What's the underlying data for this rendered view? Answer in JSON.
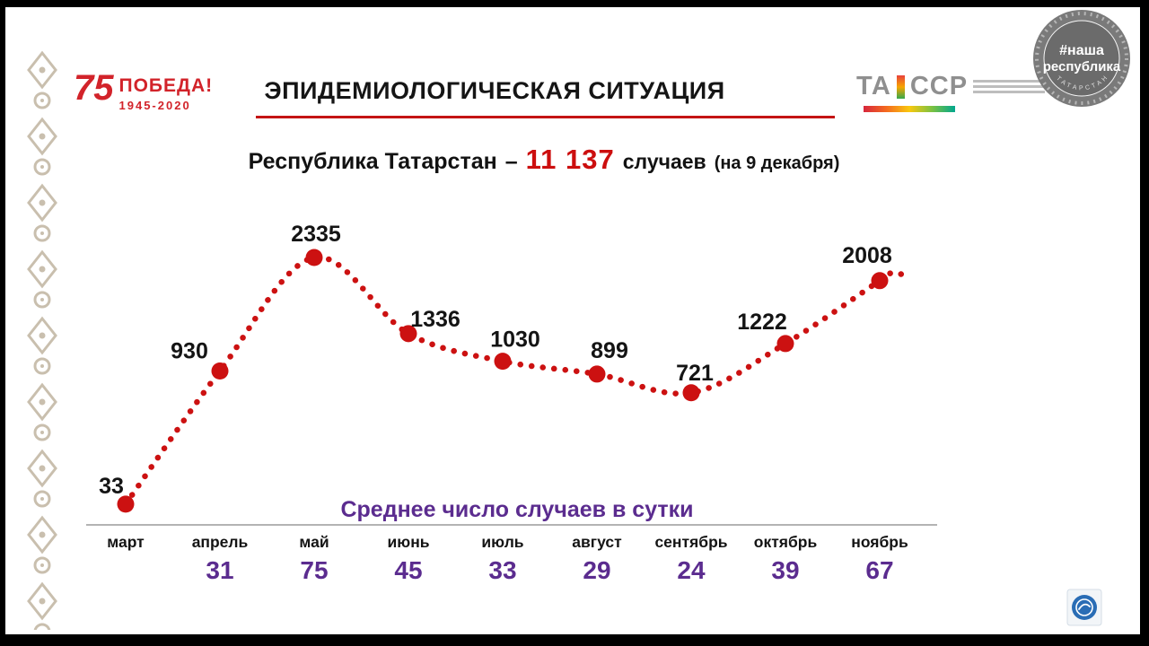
{
  "page": {
    "frame_color": "#000000",
    "slide_bg": "#ffffff"
  },
  "logos": {
    "victory": {
      "number": "75",
      "title": "ПОБЕДА!",
      "years": "1945-2020"
    },
    "tassr": {
      "left": "ТА",
      "right": "ССР"
    },
    "stamp": {
      "line1": "#наша",
      "line2": "республика",
      "bottom": "ТАТАРСТАН"
    }
  },
  "header": {
    "title": "ЭПИДЕМИОЛОГИЧЕСКАЯ СИТУАЦИЯ",
    "underline_color": "#c41414"
  },
  "subtitle": {
    "region": "Республика Татарстан",
    "dash": "–",
    "total": "11 137",
    "unit": "случаев",
    "asof": "(на 9 декабря)"
  },
  "chart_data": {
    "type": "line",
    "line_style": "dotted",
    "color": "#cc1111",
    "label_color": "#141414",
    "accent_purple": "#5b2c8f",
    "title": "ЭПИДЕМИОЛОГИЧЕСКАЯ СИТУАЦИЯ",
    "avg_title": "Среднее число случаев в сутки",
    "categories": [
      "март",
      "апрель",
      "май",
      "июнь",
      "июль",
      "август",
      "сентябрь",
      "октябрь",
      "ноябрь"
    ],
    "values": [
      33,
      930,
      2335,
      1336,
      1030,
      899,
      721,
      1222,
      2008
    ],
    "daily_averages": [
      "",
      "31",
      "75",
      "45",
      "33",
      "29",
      "24",
      "39",
      "67"
    ],
    "ylim": [
      0,
      2500
    ],
    "grid": false,
    "legend": false
  }
}
